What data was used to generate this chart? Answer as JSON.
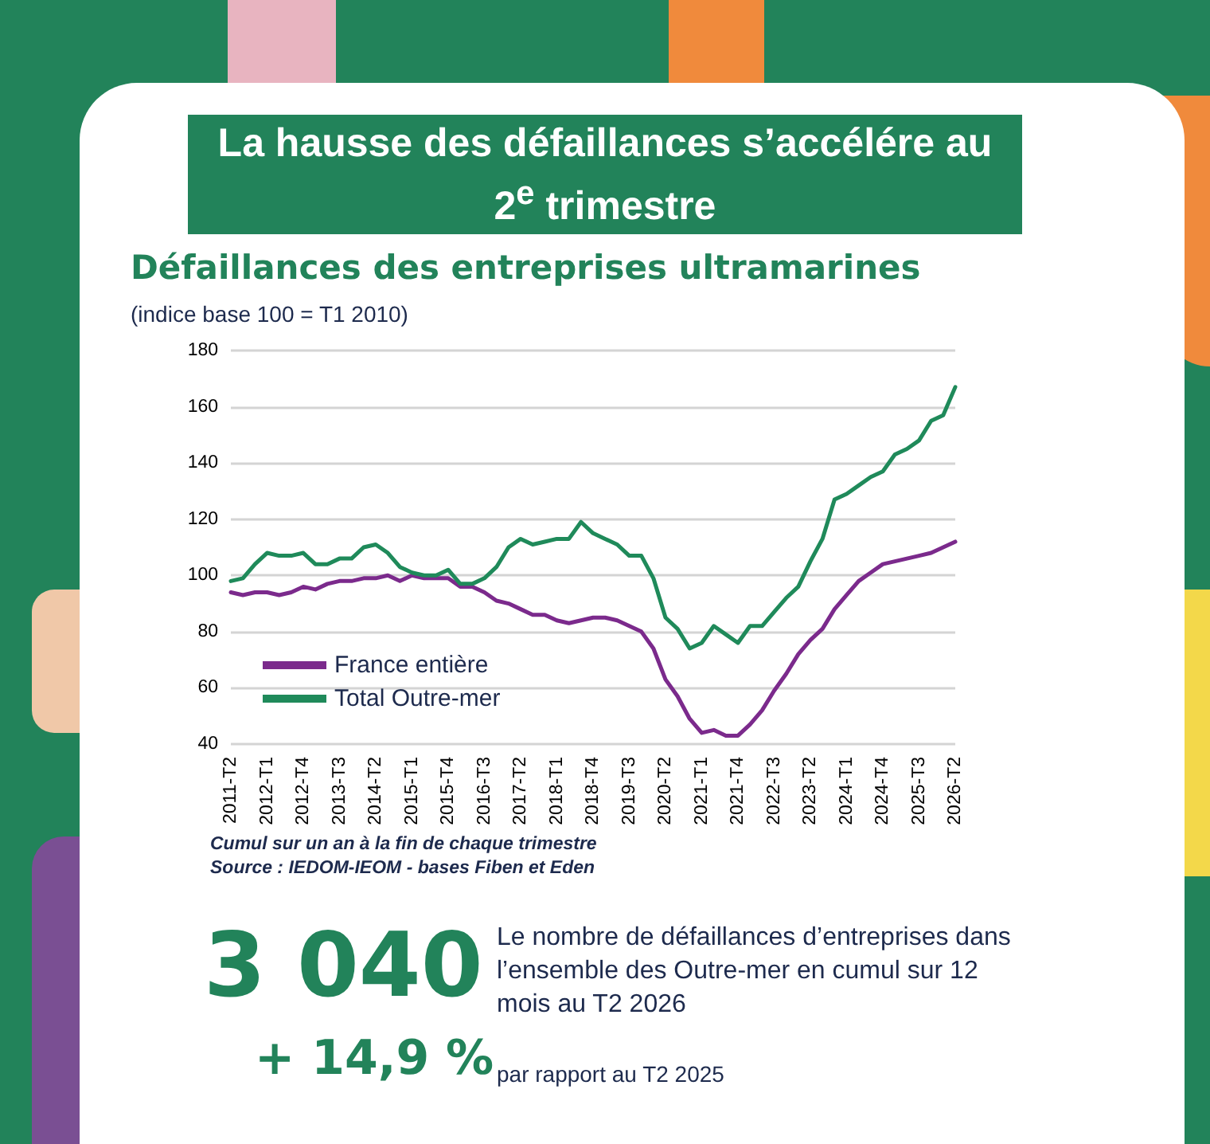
{
  "chart_data": {
    "type": "line",
    "title": "La hausse des défaillances s’accélére au 2$^{e}$ trimestre",
    "subtitle": "Défaillances des entreprises ultramarines",
    "ylabel": "(indice base 100 = T1 2010)",
    "categories": [
      "2011-T2",
      null,
      null,
      "2012-T1",
      null,
      null,
      "2012-T4",
      null,
      null,
      "2013-T3",
      null,
      null,
      "2014-T2",
      null,
      null,
      "2015-T1",
      null,
      null,
      "2015-T4",
      null,
      null,
      "2016-T3",
      null,
      null,
      "2017-T2",
      null,
      null,
      "2018-T1",
      null,
      null,
      "2018-T4",
      null,
      null,
      "2019-T3",
      null,
      null,
      "2020-T2",
      null,
      null,
      "2021-T1",
      null,
      null,
      "2021-T4",
      null,
      null,
      "2022-T3",
      null,
      null,
      "2023-T2",
      null,
      null,
      "2024-T1",
      null,
      null,
      "2024-T4",
      null,
      null,
      "2025-T3",
      null,
      null,
      "2026-T2"
    ],
    "series": [
      {
        "name": "France entière",
        "color": "#7b2a8c",
        "values": [
          94,
          93,
          94,
          94,
          93,
          94,
          96,
          95,
          97,
          98,
          98,
          99,
          99,
          100,
          98,
          100,
          99,
          99,
          99,
          96,
          96,
          94,
          91,
          90,
          88,
          86,
          86,
          84,
          83,
          84,
          85,
          85,
          84,
          82,
          80,
          74,
          63,
          57,
          49,
          44,
          45,
          43,
          43,
          47,
          52,
          59,
          65,
          72,
          77,
          81,
          88,
          93,
          98,
          101,
          104,
          105,
          106,
          107,
          108,
          110,
          112
        ]
      },
      {
        "name": "Total Outre-mer",
        "color": "#1f8a5a",
        "values": [
          98,
          99,
          104,
          108,
          107,
          107,
          108,
          104,
          104,
          106,
          106,
          110,
          111,
          108,
          103,
          101,
          100,
          100,
          102,
          97,
          97,
          99,
          103,
          110,
          113,
          111,
          112,
          113,
          113,
          119,
          115,
          113,
          111,
          107,
          107,
          99,
          85,
          81,
          74,
          76,
          82,
          79,
          76,
          82,
          82,
          87,
          92,
          96,
          105,
          113,
          127,
          129,
          132,
          135,
          137,
          143,
          145,
          148,
          155,
          157,
          167
        ]
      }
    ],
    "ylim": [
      40,
      180
    ],
    "yticks": [
      40,
      60,
      80,
      100,
      120,
      140,
      160,
      180
    ],
    "grid": "y",
    "legend": "bottom left",
    "marker": "none",
    "line_style": "solid",
    "annotations": [
      "Cumul sur un an à la fin de chaque trimestre",
      "Source : IEDOM-IEOM - bases Fiben et Eden",
      "3 040",
      "Le nombre de défaillances d’entreprises dans l’ensemble des Outre-mer en cumul sur 12 mois au T2 2026",
      "+ 14,9 %",
      "par rapport au T2 2025"
    ]
  }
}
